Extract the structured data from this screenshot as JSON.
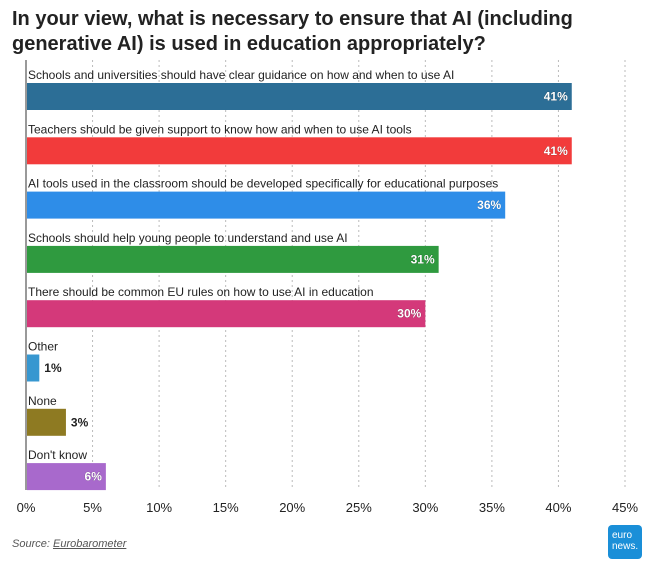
{
  "chart_data": {
    "type": "bar",
    "orientation": "horizontal",
    "title": "In your view, what is necessary to ensure that AI (including generative AI) is used in education appropriately?",
    "categories": [
      "Schools and universities should have clear guidance on how and when to use AI",
      "Teachers should be given support to know how and when to use AI tools",
      "AI tools used in the classroom should be developed specifically for educational purposes",
      "Schools should help young people to understand and use AI",
      "There should be common EU rules on how to use AI in education",
      "Other",
      "None",
      "Don't know"
    ],
    "values": [
      41,
      41,
      36,
      31,
      30,
      1,
      3,
      6
    ],
    "value_labels": [
      "41%",
      "41%",
      "36%",
      "31%",
      "30%",
      "1%",
      "3%",
      "6%"
    ],
    "colors": [
      "#2c6e96",
      "#f23b3b",
      "#2e8de8",
      "#2f9a3f",
      "#d4397a",
      "#3797d0",
      "#8e7a22",
      "#a869cc"
    ],
    "xlim": [
      0,
      45
    ],
    "xticks": [
      0,
      5,
      10,
      15,
      20,
      25,
      30,
      35,
      40,
      45
    ],
    "xtick_labels": [
      "0%",
      "5%",
      "10%",
      "15%",
      "20%",
      "25%",
      "30%",
      "35%",
      "40%",
      "45%"
    ],
    "grid": "vertical dashed",
    "xlabel": "",
    "ylabel": ""
  },
  "source": {
    "prefix": "Source:",
    "name": "Eurobarometer"
  },
  "logo": {
    "line1": "euro",
    "line2": "news."
  }
}
